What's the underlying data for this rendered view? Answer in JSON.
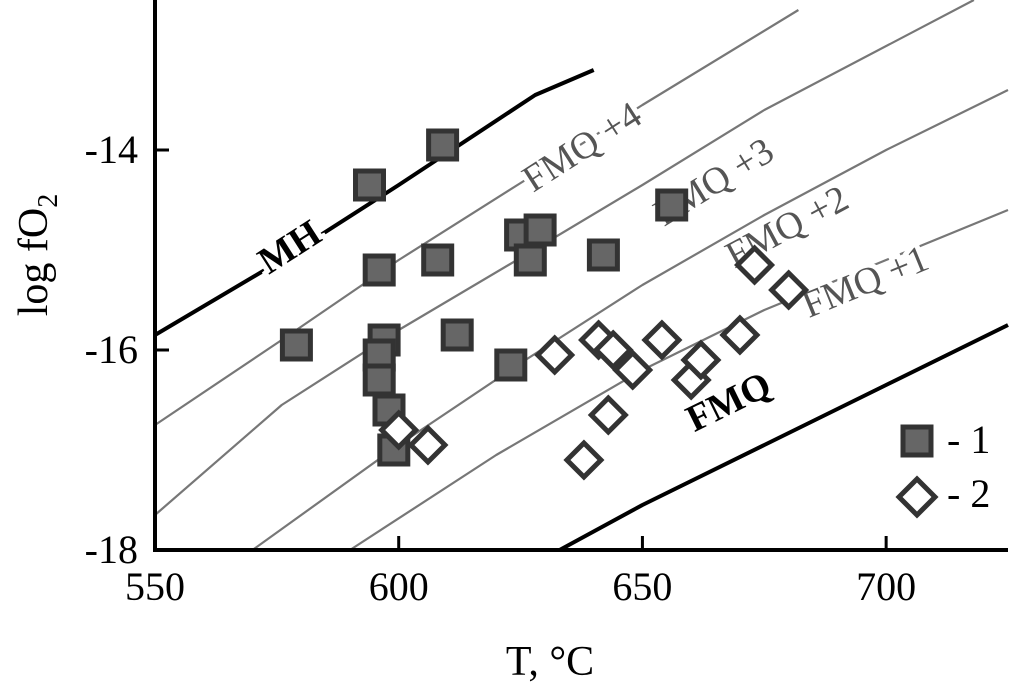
{
  "chart_data": {
    "type": "scatter",
    "xlabel": "T, °C",
    "ylabel_main": "log fO",
    "ylabel_sub": "2",
    "xlim": [
      550,
      725
    ],
    "ylim": [
      -18,
      -12.5
    ],
    "xticks": [
      550,
      600,
      650,
      700
    ],
    "yticks": [
      -18,
      -16,
      -14
    ],
    "legend_placement": "bottom-right",
    "buffers": [
      {
        "name": "MH",
        "bold": true,
        "label_at": [
          578,
          -15.0
        ],
        "points": [
          [
            550,
            -15.85
          ],
          [
            576,
            -15.1
          ],
          [
            600,
            -14.35
          ],
          [
            628,
            -13.45
          ],
          [
            640,
            -13.2
          ]
        ]
      },
      {
        "name": "FMQ +4",
        "bold": false,
        "label_at": [
          638,
          -14.0
        ],
        "points": [
          [
            550,
            -16.75
          ],
          [
            576,
            -15.9
          ],
          [
            600,
            -15.1
          ],
          [
            626,
            -14.3
          ],
          [
            650,
            -13.55
          ],
          [
            682,
            -12.6
          ]
        ]
      },
      {
        "name": "FMQ +3",
        "bold": false,
        "label_at": [
          665,
          -14.35
        ],
        "points": [
          [
            550,
            -17.65
          ],
          [
            576,
            -16.55
          ],
          [
            600,
            -15.8
          ],
          [
            626,
            -15.05
          ],
          [
            650,
            -14.35
          ],
          [
            675,
            -13.6
          ],
          [
            718,
            -12.5
          ]
        ]
      },
      {
        "name": "FMQ +2",
        "bold": false,
        "label_at": [
          680,
          -14.8
        ],
        "points": [
          [
            570,
            -18.0
          ],
          [
            600,
            -16.95
          ],
          [
            626,
            -16.1
          ],
          [
            650,
            -15.35
          ],
          [
            675,
            -14.65
          ],
          [
            700,
            -14.0
          ],
          [
            725,
            -13.4
          ]
        ]
      },
      {
        "name": "FMQ +1",
        "bold": false,
        "label_at": [
          696,
          -15.35
        ],
        "points": [
          [
            590,
            -18.0
          ],
          [
            620,
            -17.05
          ],
          [
            650,
            -16.2
          ],
          [
            675,
            -15.6
          ],
          [
            700,
            -15.1
          ],
          [
            725,
            -14.6
          ]
        ]
      },
      {
        "name": "FMQ",
        "bold": true,
        "label_at": [
          668,
          -16.55
        ],
        "points": [
          [
            633,
            -18.0
          ],
          [
            650,
            -17.55
          ],
          [
            675,
            -16.95
          ],
          [
            700,
            -16.35
          ],
          [
            725,
            -15.75
          ]
        ]
      }
    ],
    "series": [
      {
        "name": "1",
        "marker": "square",
        "points": [
          [
            579,
            -15.95
          ],
          [
            594,
            -14.35
          ],
          [
            596,
            -15.2
          ],
          [
            597,
            -15.9
          ],
          [
            596,
            -16.05
          ],
          [
            596,
            -16.3
          ],
          [
            598,
            -16.6
          ],
          [
            599,
            -17.0
          ],
          [
            609,
            -13.95
          ],
          [
            608,
            -15.1
          ],
          [
            612,
            -15.85
          ],
          [
            623,
            -16.15
          ],
          [
            625,
            -14.85
          ],
          [
            627,
            -15.1
          ],
          [
            629,
            -14.8
          ],
          [
            642,
            -15.05
          ],
          [
            656,
            -14.55
          ]
        ]
      },
      {
        "name": "2",
        "marker": "diamond",
        "points": [
          [
            600,
            -16.8
          ],
          [
            606,
            -16.95
          ],
          [
            632,
            -16.05
          ],
          [
            638,
            -17.1
          ],
          [
            641,
            -15.9
          ],
          [
            643,
            -16.65
          ],
          [
            644,
            -16.0
          ],
          [
            648,
            -16.2
          ],
          [
            654,
            -15.9
          ],
          [
            660,
            -16.3
          ],
          [
            662,
            -16.1
          ],
          [
            670,
            -15.85
          ],
          [
            673,
            -15.15
          ],
          [
            680,
            -15.4
          ]
        ]
      }
    ]
  }
}
